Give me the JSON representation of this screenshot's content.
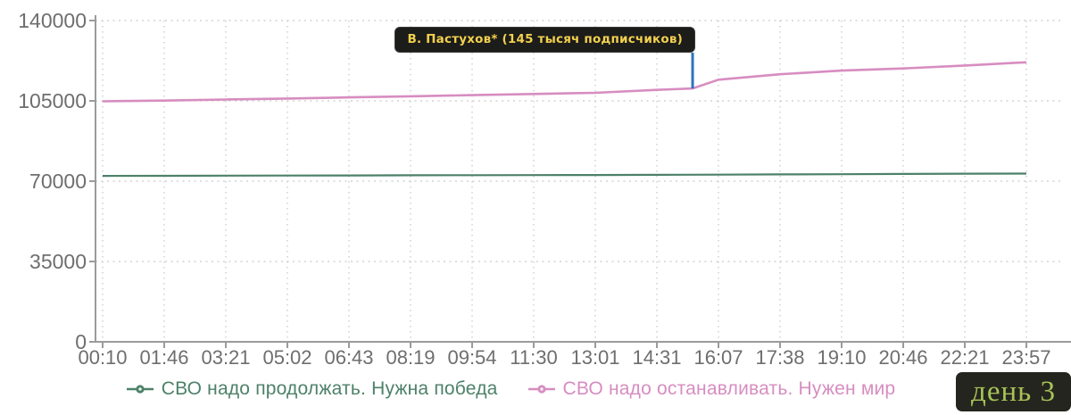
{
  "day_badge": {
    "label": "день 3",
    "bg": "#25251f",
    "text_color": "#a6c356"
  },
  "annotation": {
    "label": "В. Пастухов* (145 тысяч подписчиков)",
    "bg": "#1c1c1a",
    "text_color": "#f2d14e",
    "line_color": "#2e72bd",
    "t": 9.58,
    "value": 110400
  },
  "chart_data": {
    "type": "line",
    "title": "",
    "xlabel": "",
    "ylabel": "",
    "categories": [
      "00:10",
      "01:46",
      "03:21",
      "05:02",
      "06:43",
      "08:19",
      "09:54",
      "11:30",
      "13:01",
      "14:31",
      "16:07",
      "17:38",
      "19:10",
      "20:46",
      "22:21",
      "23:57"
    ],
    "yticks": [
      0,
      35000,
      70000,
      105000,
      140000
    ],
    "ylim": [
      0,
      140000
    ],
    "grid": true,
    "legend_position": "bottom",
    "axis_color": "#9b9b9b",
    "grid_color": "#c9c9c9",
    "tick_text_color": "#6e6e6e",
    "series": [
      {
        "name": "СВО надо продолжать. Нужна победа",
        "color": "#4d8169",
        "points": [
          [
            0,
            72300
          ],
          [
            1,
            72350
          ],
          [
            2,
            72400
          ],
          [
            3,
            72450
          ],
          [
            4,
            72500
          ],
          [
            5,
            72550
          ],
          [
            6,
            72600
          ],
          [
            7,
            72650
          ],
          [
            8,
            72700
          ],
          [
            9,
            72750
          ],
          [
            10,
            72850
          ],
          [
            11,
            72950
          ],
          [
            12,
            73050
          ],
          [
            13,
            73150
          ],
          [
            14,
            73250
          ],
          [
            15,
            73300
          ]
        ]
      },
      {
        "name": "СВО надо останавливать. Нужен мир",
        "color": "#d78dc0",
        "points": [
          [
            0,
            104800
          ],
          [
            1,
            105100
          ],
          [
            2,
            105600
          ],
          [
            3,
            106000
          ],
          [
            4,
            106500
          ],
          [
            5,
            107000
          ],
          [
            6,
            107500
          ],
          [
            7,
            108000
          ],
          [
            8,
            108500
          ],
          [
            9,
            109800
          ],
          [
            9.58,
            110400
          ],
          [
            10,
            114200
          ],
          [
            11,
            116600
          ],
          [
            12,
            118200
          ],
          [
            13,
            119100
          ],
          [
            14,
            120400
          ],
          [
            15,
            121800
          ]
        ]
      }
    ],
    "annotation": {
      "label": "В. Пастухов* (145 тысяч подписчиков)",
      "t": 9.58,
      "value": 110400,
      "line_color": "#2e72bd"
    }
  }
}
